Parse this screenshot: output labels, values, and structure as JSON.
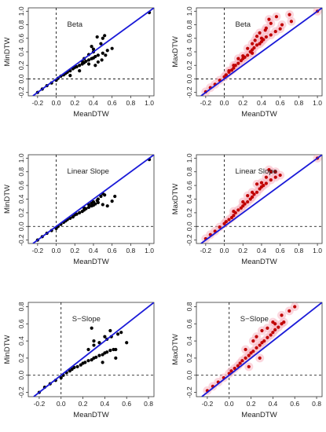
{
  "colors": {
    "black_points": "#000000",
    "red_points": "#c00000",
    "red_halo": "#f7b7c3",
    "diagonal": "#1a1ad8",
    "axis": "#333333"
  },
  "chart_data": [
    {
      "type": "scatter",
      "panel": "top-left",
      "title": "Beta",
      "xlabel": "MeanDTW",
      "ylabel": "MinDTW",
      "xlim": [
        -0.3,
        1.05
      ],
      "ylim": [
        -0.25,
        1.05
      ],
      "xticks": [
        "-0.2",
        "0.0",
        "0.2",
        "0.4",
        "0.6",
        "0.8",
        "1.0"
      ],
      "yticks": [
        "-0.2",
        "0.0",
        "0.2",
        "0.4",
        "0.6",
        "0.8",
        "1.0"
      ],
      "reference_lines": {
        "diagonal": true,
        "vline_x": 0,
        "hline_y": 0
      },
      "series": [
        {
          "color": "black",
          "x": [
            -0.2,
            -0.15,
            -0.1,
            -0.05,
            0.0,
            0.02,
            0.05,
            0.08,
            0.1,
            0.12,
            0.15,
            0.18,
            0.2,
            0.22,
            0.25,
            0.28,
            0.3,
            0.32,
            0.35,
            0.38,
            0.4,
            0.42,
            0.45,
            0.5,
            0.55,
            0.6,
            0.15,
            0.25,
            0.35,
            0.45,
            0.3,
            0.4,
            0.38,
            0.48,
            0.5,
            0.44,
            0.52,
            0.35,
            0.28,
            0.4,
            0.53,
            0.42,
            0.49,
            1.0
          ],
          "y": [
            -0.2,
            -0.15,
            -0.1,
            -0.06,
            -0.02,
            0.01,
            0.04,
            0.06,
            0.08,
            0.1,
            0.12,
            0.15,
            0.17,
            0.18,
            0.2,
            0.22,
            0.24,
            0.26,
            0.28,
            0.3,
            0.31,
            0.33,
            0.35,
            0.38,
            0.42,
            0.45,
            0.05,
            0.12,
            0.22,
            0.25,
            0.3,
            0.4,
            0.48,
            0.52,
            0.6,
            0.62,
            0.64,
            0.36,
            0.26,
            0.44,
            0.35,
            0.2,
            0.28,
            0.98
          ]
        }
      ]
    },
    {
      "type": "scatter",
      "panel": "top-right",
      "title": "Beta",
      "xlabel": "MeanDTW",
      "ylabel": "MaxDTW",
      "xlim": [
        -0.3,
        1.05
      ],
      "ylim": [
        -0.25,
        1.05
      ],
      "xticks": [
        "-0.2",
        "0.0",
        "0.2",
        "0.4",
        "0.6",
        "0.8",
        "1.0"
      ],
      "yticks": [
        "-0.2",
        "0.0",
        "0.2",
        "0.4",
        "0.6",
        "0.8",
        "1.0"
      ],
      "reference_lines": {
        "diagonal": true,
        "vline_x": 0,
        "hline_y": 0
      },
      "series": [
        {
          "color": "red",
          "x": [
            -0.2,
            -0.15,
            -0.1,
            -0.05,
            0.0,
            0.02,
            0.05,
            0.08,
            0.1,
            0.12,
            0.15,
            0.18,
            0.2,
            0.22,
            0.25,
            0.28,
            0.3,
            0.32,
            0.35,
            0.38,
            0.4,
            0.42,
            0.45,
            0.5,
            0.55,
            0.6,
            0.1,
            0.2,
            0.3,
            0.35,
            0.45,
            0.5,
            0.25,
            0.4,
            0.3,
            0.48,
            0.56,
            0.62,
            0.15,
            0.05,
            0.38,
            0.44,
            0.33,
            0.7,
            0.72,
            1.0
          ],
          "y": [
            -0.19,
            -0.13,
            -0.08,
            -0.02,
            0.03,
            0.06,
            0.1,
            0.13,
            0.16,
            0.2,
            0.23,
            0.27,
            0.3,
            0.32,
            0.35,
            0.4,
            0.43,
            0.46,
            0.5,
            0.52,
            0.55,
            0.58,
            0.62,
            0.65,
            0.7,
            0.74,
            0.2,
            0.34,
            0.52,
            0.63,
            0.75,
            0.82,
            0.45,
            0.6,
            0.38,
            0.88,
            0.92,
            0.8,
            0.3,
            0.12,
            0.68,
            0.72,
            0.57,
            0.95,
            0.85,
            1.0
          ]
        }
      ]
    },
    {
      "type": "scatter",
      "panel": "middle-left",
      "title": "Linear Slope",
      "xlabel": "MeanDTW",
      "ylabel": "MinDTW",
      "xlim": [
        -0.3,
        1.05
      ],
      "ylim": [
        -0.25,
        1.05
      ],
      "xticks": [
        "-0.2",
        "0.0",
        "0.2",
        "0.4",
        "0.6",
        "0.8",
        "1.0"
      ],
      "yticks": [
        "-0.2",
        "0.0",
        "0.2",
        "0.4",
        "0.6",
        "0.8",
        "1.0"
      ],
      "reference_lines": {
        "diagonal": true,
        "vline_x": 0,
        "hline_y": 0
      },
      "series": [
        {
          "color": "black",
          "x": [
            -0.2,
            -0.15,
            -0.1,
            -0.05,
            0.0,
            0.02,
            0.05,
            0.08,
            0.1,
            0.12,
            0.15,
            0.18,
            0.2,
            0.22,
            0.25,
            0.28,
            0.3,
            0.32,
            0.35,
            0.38,
            0.4,
            0.42,
            0.45,
            0.5,
            0.55,
            0.6,
            0.3,
            0.4,
            0.45,
            0.48,
            0.35,
            0.52,
            0.44,
            0.38,
            0.63,
            0.5,
            1.0
          ],
          "y": [
            -0.2,
            -0.15,
            -0.1,
            -0.06,
            -0.03,
            0.0,
            0.03,
            0.06,
            0.08,
            0.1,
            0.12,
            0.14,
            0.17,
            0.18,
            0.2,
            0.22,
            0.24,
            0.26,
            0.28,
            0.3,
            0.31,
            0.33,
            0.35,
            0.32,
            0.3,
            0.37,
            0.27,
            0.36,
            0.4,
            0.44,
            0.32,
            0.46,
            0.38,
            0.34,
            0.44,
            0.48,
            0.98
          ]
        }
      ]
    },
    {
      "type": "scatter",
      "panel": "middle-right",
      "title": "Linear Slope",
      "xlabel": "MeanDTW",
      "ylabel": "MaxDTW",
      "xlim": [
        -0.3,
        1.05
      ],
      "ylim": [
        -0.25,
        1.05
      ],
      "xticks": [
        "-0.2",
        "0.0",
        "0.2",
        "0.4",
        "0.6",
        "0.8",
        "1.0"
      ],
      "yticks": [
        "-0.2",
        "0.0",
        "0.2",
        "0.4",
        "0.6",
        "0.8",
        "1.0"
      ],
      "reference_lines": {
        "diagonal": true,
        "vline_x": 0,
        "hline_y": 0
      },
      "series": [
        {
          "color": "red",
          "x": [
            -0.2,
            -0.15,
            -0.1,
            -0.05,
            0.0,
            0.02,
            0.05,
            0.08,
            0.1,
            0.12,
            0.15,
            0.18,
            0.2,
            0.22,
            0.25,
            0.28,
            0.3,
            0.32,
            0.35,
            0.38,
            0.4,
            0.42,
            0.45,
            0.5,
            0.55,
            0.6,
            0.1,
            0.2,
            0.3,
            0.4,
            0.45,
            0.5,
            0.35,
            0.25,
            0.48,
            0.55,
            1.0
          ],
          "y": [
            -0.18,
            -0.12,
            -0.07,
            -0.01,
            0.04,
            0.07,
            0.1,
            0.13,
            0.16,
            0.2,
            0.24,
            0.27,
            0.3,
            0.33,
            0.36,
            0.4,
            0.43,
            0.47,
            0.5,
            0.55,
            0.58,
            0.6,
            0.63,
            0.68,
            0.72,
            0.75,
            0.22,
            0.36,
            0.5,
            0.64,
            0.72,
            0.8,
            0.62,
            0.45,
            0.83,
            0.8,
            1.0
          ]
        }
      ]
    },
    {
      "type": "scatter",
      "panel": "bottom-left",
      "title": "S−Slope",
      "xlabel": "MeanDTW",
      "ylabel": "MinDTW",
      "xlim": [
        -0.3,
        0.85
      ],
      "ylim": [
        -0.25,
        0.85
      ],
      "xticks": [
        "-0.2",
        "0.0",
        "0.2",
        "0.4",
        "0.6",
        "0.8"
      ],
      "yticks": [
        "-0.2",
        "0.0",
        "0.2",
        "0.4",
        "0.6",
        "0.8"
      ],
      "reference_lines": {
        "diagonal": true,
        "vline_x": 0,
        "hline_y": 0
      },
      "series": [
        {
          "color": "black",
          "x": [
            -0.2,
            -0.15,
            -0.1,
            -0.05,
            0.0,
            0.02,
            0.05,
            0.08,
            0.1,
            0.12,
            0.15,
            0.18,
            0.2,
            0.22,
            0.25,
            0.28,
            0.3,
            0.32,
            0.35,
            0.38,
            0.4,
            0.42,
            0.45,
            0.48,
            0.5,
            0.3,
            0.35,
            0.42,
            0.46,
            0.52,
            0.3,
            0.4,
            0.45,
            0.55,
            0.25,
            0.38,
            0.5,
            0.28,
            0.6
          ],
          "y": [
            -0.2,
            -0.14,
            -0.1,
            -0.06,
            -0.03,
            0.0,
            0.03,
            0.05,
            0.07,
            0.09,
            0.1,
            0.12,
            0.14,
            0.15,
            0.17,
            0.18,
            0.2,
            0.21,
            0.23,
            0.24,
            0.26,
            0.27,
            0.29,
            0.3,
            0.3,
            0.35,
            0.38,
            0.42,
            0.45,
            0.48,
            0.4,
            0.45,
            0.52,
            0.5,
            0.3,
            0.15,
            0.2,
            0.55,
            0.38
          ]
        }
      ]
    },
    {
      "type": "scatter",
      "panel": "bottom-right",
      "title": "S−Slope",
      "xlabel": "MeanDTW",
      "ylabel": "MaxDTW",
      "xlim": [
        -0.3,
        0.85
      ],
      "ylim": [
        -0.25,
        0.85
      ],
      "xticks": [
        "-0.2",
        "0.0",
        "0.2",
        "0.4",
        "0.6",
        "0.8"
      ],
      "yticks": [
        "-0.2",
        "0.0",
        "0.2",
        "0.4",
        "0.6",
        "0.8"
      ],
      "reference_lines": {
        "diagonal": true,
        "vline_x": 0,
        "hline_y": 0
      },
      "series": [
        {
          "color": "red",
          "x": [
            -0.2,
            -0.15,
            -0.1,
            -0.05,
            0.0,
            0.02,
            0.05,
            0.08,
            0.1,
            0.12,
            0.15,
            0.18,
            0.2,
            0.22,
            0.25,
            0.28,
            0.3,
            0.32,
            0.35,
            0.38,
            0.4,
            0.42,
            0.45,
            0.48,
            0.5,
            0.15,
            0.25,
            0.3,
            0.35,
            0.42,
            0.48,
            0.4,
            0.22,
            0.55,
            0.18,
            0.28,
            0.6
          ],
          "y": [
            -0.18,
            -0.13,
            -0.08,
            -0.03,
            0.02,
            0.05,
            0.08,
            0.11,
            0.14,
            0.17,
            0.2,
            0.23,
            0.26,
            0.28,
            0.32,
            0.35,
            0.38,
            0.4,
            0.44,
            0.47,
            0.5,
            0.53,
            0.56,
            0.6,
            0.62,
            0.3,
            0.45,
            0.52,
            0.55,
            0.6,
            0.7,
            0.62,
            0.4,
            0.75,
            0.1,
            0.2,
            0.8
          ]
        }
      ]
    }
  ]
}
